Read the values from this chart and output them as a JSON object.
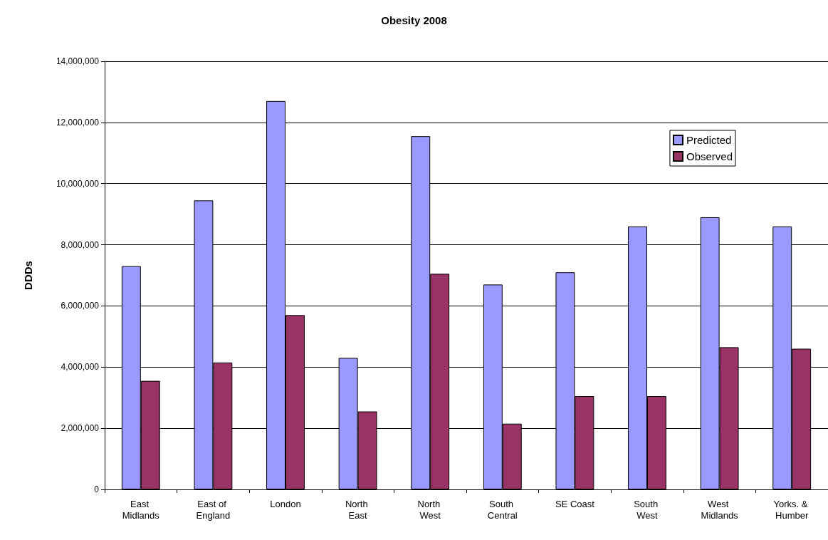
{
  "chart_data": {
    "type": "bar",
    "title": "Obesity 2008",
    "ylabel": "DDDs",
    "categories": [
      "East Midlands",
      "East of England",
      "London",
      "North East",
      "North West",
      "South Central",
      "SE Coast",
      "South West",
      "West Midlands",
      "Yorks. & Humber"
    ],
    "series": [
      {
        "name": "Predicted",
        "color": "#9999ff",
        "values": [
          7300000,
          9450000,
          12700000,
          4300000,
          11550000,
          6700000,
          7100000,
          8600000,
          8900000,
          8600000
        ]
      },
      {
        "name": "Observed",
        "color": "#993366",
        "values": [
          3550000,
          4150000,
          5700000,
          2550000,
          7050000,
          2150000,
          3050000,
          3050000,
          4650000,
          4600000
        ]
      }
    ],
    "ylim": [
      0,
      14000000
    ],
    "yticks": [
      0,
      {
        "value": 2000000,
        "label": "2,000,000"
      },
      {
        "value": 4000000,
        "label": "4,000,000"
      },
      {
        "value": 6000000,
        "label": "6,000,000"
      },
      {
        "value": 8000000,
        "label": "8,000,000"
      },
      {
        "value": 10000000,
        "label": "10,000,000"
      },
      {
        "value": 12000000,
        "label": "12,000,000"
      },
      {
        "value": 14000000,
        "label": "14,000,000"
      }
    ],
    "grid": "y",
    "legend": "top right"
  }
}
